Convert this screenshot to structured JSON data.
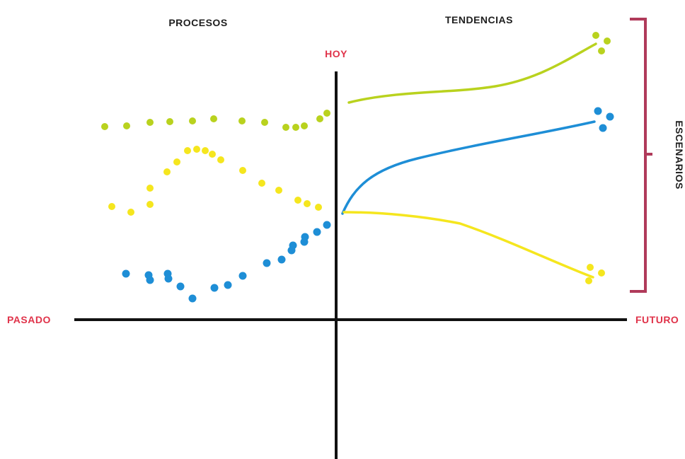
{
  "labels": {
    "procesos": "PROCESOS",
    "tendencias": "TENDENCIAS",
    "hoy": "HOY",
    "pasado": "PASADO",
    "futuro": "FUTURO",
    "escenarios": "ESCENARIOS"
  },
  "colors": {
    "green": "#b9d21e",
    "yellow": "#f5e61e",
    "blue": "#1e8ed6",
    "axis": "#111111",
    "label_red": "#e0334a",
    "bracket": "#b03a5a",
    "text_dark": "#1e1e1e"
  },
  "series": [
    {
      "key": "green",
      "color_key": "green"
    },
    {
      "key": "yellow",
      "color_key": "yellow"
    },
    {
      "key": "blue",
      "color_key": "blue"
    }
  ]
}
